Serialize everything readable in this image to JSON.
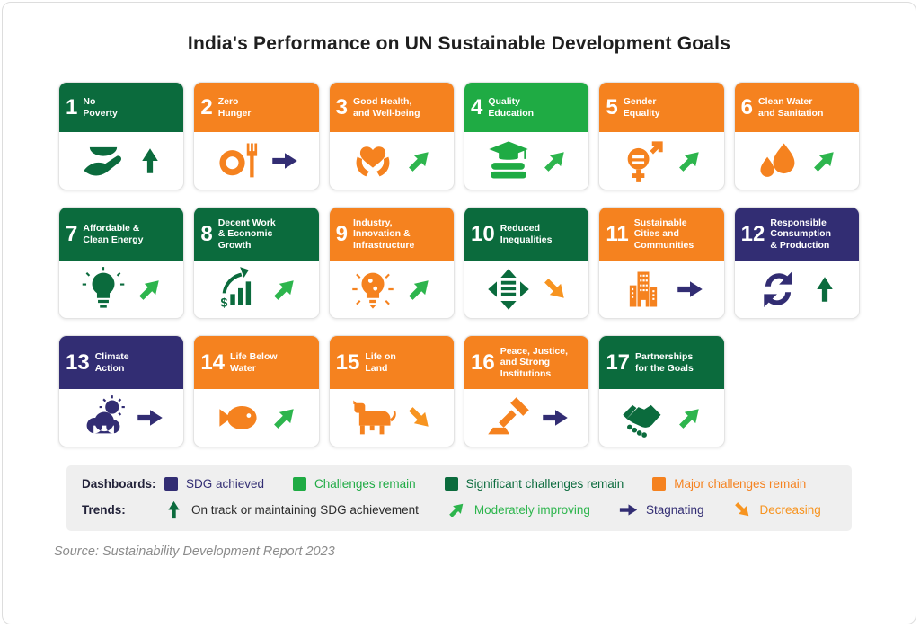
{
  "title": "India's Performance on UN Sustainable Development Goals",
  "colors": {
    "sdg_achieved": "#322d73",
    "challenges_remain": "#1fab44",
    "significant_challenges": "#0b6b3d",
    "major_challenges": "#f5821f",
    "on_track_arrow": "#0b6b3d",
    "moderately_improving_arrow": "#2db54d",
    "stagnating_arrow": "#322d73",
    "decreasing_arrow": "#f79420"
  },
  "chart_data": {
    "type": "table",
    "title": "India's Performance on UN Sustainable Development Goals",
    "columns": [
      "goal_number",
      "goal_title",
      "dashboard_status",
      "trend"
    ],
    "rows": [
      [
        1,
        "No Poverty",
        "Significant challenges remain",
        "On track or maintaining SDG achievement"
      ],
      [
        2,
        "Zero Hunger",
        "Major challenges remain",
        "Stagnating"
      ],
      [
        3,
        "Good Health, and Well-being",
        "Major challenges remain",
        "Moderately improving"
      ],
      [
        4,
        "Quality Education",
        "Challenges remain",
        "Moderately improving"
      ],
      [
        5,
        "Gender Equality",
        "Major challenges remain",
        "Moderately improving"
      ],
      [
        6,
        "Clean Water and Sanitation",
        "Major challenges remain",
        "Moderately improving"
      ],
      [
        7,
        "Affordable & Clean Energy",
        "Significant challenges remain",
        "Moderately improving"
      ],
      [
        8,
        "Decent Work & Economic Growth",
        "Significant challenges remain",
        "Moderately improving"
      ],
      [
        9,
        "Industry, Innovation & Infrastructure",
        "Major challenges remain",
        "Moderately improving"
      ],
      [
        10,
        "Reduced Inequalities",
        "Significant challenges remain",
        "Decreasing"
      ],
      [
        11,
        "Sustainable Cities and Communities",
        "Major challenges remain",
        "Stagnating"
      ],
      [
        12,
        "Responsible Consumption & Production",
        "SDG achieved",
        "On track or maintaining SDG achievement"
      ],
      [
        13,
        "Climate Action",
        "SDG achieved",
        "Stagnating"
      ],
      [
        14,
        "Life Below Water",
        "Major challenges remain",
        "Moderately improving"
      ],
      [
        15,
        "Life on Land",
        "Major challenges remain",
        "Decreasing"
      ],
      [
        16,
        "Peace, Justice, and Strong Institutions",
        "Major challenges remain",
        "Stagnating"
      ],
      [
        17,
        "Partnerships for the Goals",
        "Significant challenges remain",
        "Moderately improving"
      ]
    ]
  },
  "cards": [
    {
      "number": "1",
      "title": "No\nPoverty",
      "dashboard": "significant_challenges",
      "icon": "bowl-in-hand-icon",
      "trend": "on-track"
    },
    {
      "number": "2",
      "title": "Zero\nHunger",
      "dashboard": "major_challenges",
      "icon": "plate-fork-icon",
      "trend": "stagnating"
    },
    {
      "number": "3",
      "title": "Good Health,\nand Well-being",
      "dashboard": "major_challenges",
      "icon": "hands-heart-icon",
      "trend": "moderately-improving"
    },
    {
      "number": "4",
      "title": "Quality\nEducation",
      "dashboard": "challenges_remain",
      "icon": "graduation-books-icon",
      "trend": "moderately-improving"
    },
    {
      "number": "5",
      "title": "Gender\nEquality",
      "dashboard": "major_challenges",
      "icon": "gender-equality-icon",
      "trend": "moderately-improving"
    },
    {
      "number": "6",
      "title": "Clean Water\nand Sanitation",
      "dashboard": "major_challenges",
      "icon": "water-drops-icon",
      "trend": "moderately-improving"
    },
    {
      "number": "7",
      "title": "Affordable &\nClean Energy",
      "dashboard": "significant_challenges",
      "icon": "light-bulb-icon",
      "trend": "moderately-improving"
    },
    {
      "number": "8",
      "title": "Decent Work\n& Economic\nGrowth",
      "dashboard": "significant_challenges",
      "icon": "growth-chart-icon",
      "trend": "moderately-improving"
    },
    {
      "number": "9",
      "title": "Industry,\nInnovation &\nInfrastructure",
      "dashboard": "major_challenges",
      "icon": "circuit-bulb-icon",
      "trend": "moderately-improving"
    },
    {
      "number": "10",
      "title": "Reduced\nInequalities",
      "dashboard": "significant_challenges",
      "icon": "equality-icon",
      "trend": "decreasing"
    },
    {
      "number": "11",
      "title": "Sustainable\nCities and\nCommunities",
      "dashboard": "major_challenges",
      "icon": "city-buildings-icon",
      "trend": "stagnating"
    },
    {
      "number": "12",
      "title": "Responsible\nConsumption\n& Production",
      "dashboard": "sdg_achieved",
      "icon": "recycle-arrows-icon",
      "trend": "on-track"
    },
    {
      "number": "13",
      "title": "Climate\nAction",
      "dashboard": "sdg_achieved",
      "icon": "cloud-sun-icon",
      "trend": "stagnating"
    },
    {
      "number": "14",
      "title": "Life Below\nWater",
      "dashboard": "major_challenges",
      "icon": "fish-icon",
      "trend": "moderately-improving"
    },
    {
      "number": "15",
      "title": "Life on\nLand",
      "dashboard": "major_challenges",
      "icon": "cow-icon",
      "trend": "decreasing"
    },
    {
      "number": "16",
      "title": "Peace, Justice,\nand Strong\nInstitutions",
      "dashboard": "major_challenges",
      "icon": "gavel-icon",
      "trend": "stagnating"
    },
    {
      "number": "17",
      "title": "Partnerships\nfor the Goals",
      "dashboard": "significant_challenges",
      "icon": "handshake-icon",
      "trend": "moderately-improving"
    }
  ],
  "rows": [
    [
      0,
      1,
      2,
      3,
      4,
      5
    ],
    [
      6,
      7,
      8,
      9,
      10,
      11
    ],
    [
      12,
      13,
      14,
      15,
      16
    ]
  ],
  "legend": {
    "dashboards_label": "Dashboards:",
    "dashboards": [
      {
        "label": "SDG achieved",
        "color_key": "sdg_achieved"
      },
      {
        "label": "Challenges remain",
        "color_key": "challenges_remain"
      },
      {
        "label": "Significant challenges remain",
        "color_key": "significant_challenges"
      },
      {
        "label": "Major challenges remain",
        "color_key": "major_challenges"
      }
    ],
    "trends_label": "Trends:",
    "trends": [
      {
        "label": "On track or maintaining SDG achievement",
        "trend": "on-track",
        "text_color": "#2b2b2b"
      },
      {
        "label": "Moderately improving",
        "trend": "moderately-improving",
        "text_color": "#2db54d"
      },
      {
        "label": "Stagnating",
        "trend": "stagnating",
        "text_color": "#322d73"
      },
      {
        "label": "Decreasing",
        "trend": "decreasing",
        "text_color": "#f79420"
      }
    ]
  },
  "source": "Source: Sustainability Development Report 2023"
}
